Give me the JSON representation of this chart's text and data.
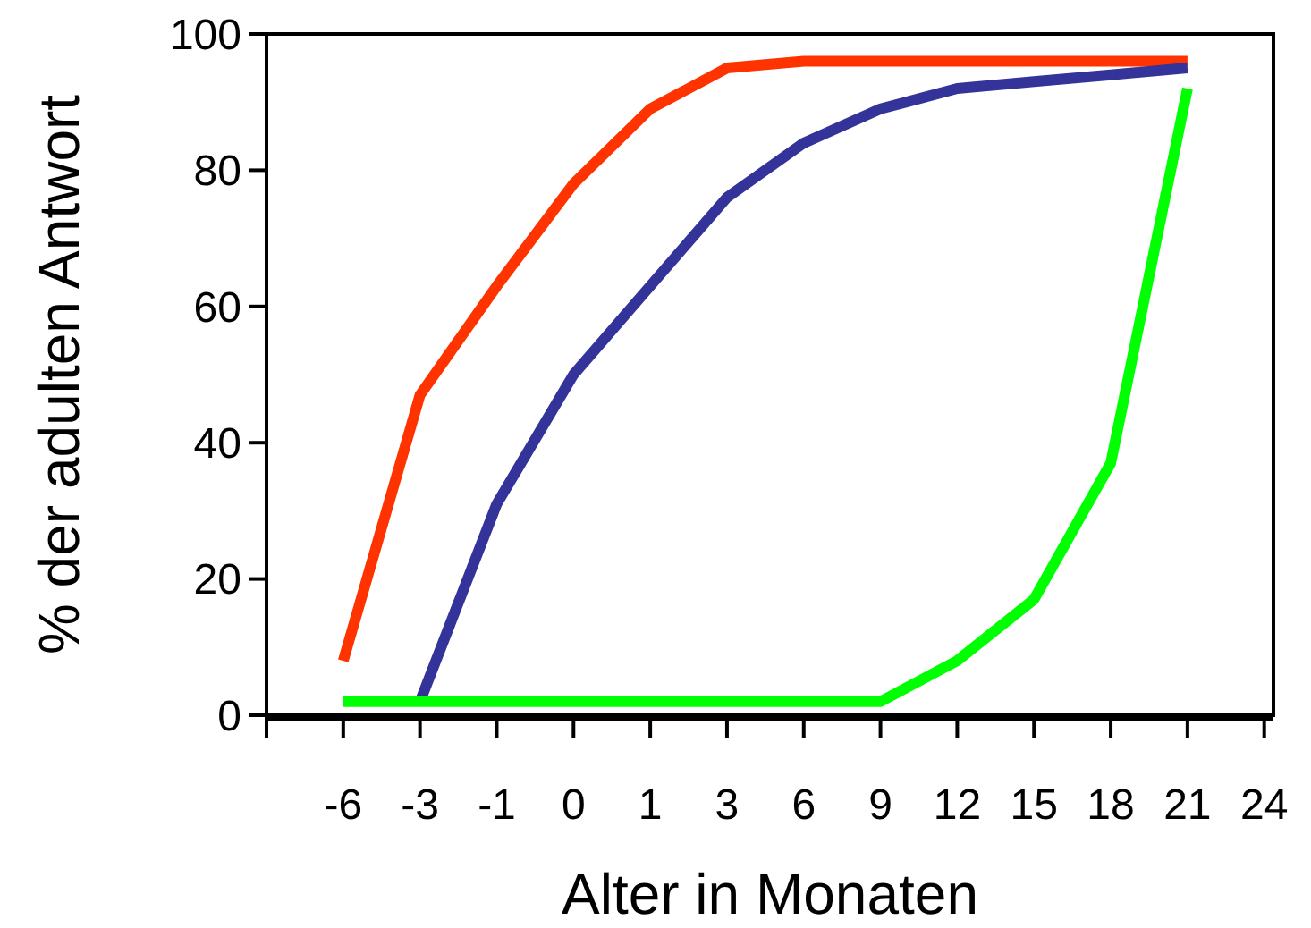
{
  "chart_data": {
    "type": "line",
    "xlabel": "Alter in Monaten",
    "ylabel": "% der adulten Antwort",
    "categories": [
      "-6",
      "-3",
      "-1",
      "0",
      "1",
      "3",
      "6",
      "9",
      "12",
      "15",
      "18",
      "21",
      "24"
    ],
    "ylim": [
      0,
      100
    ],
    "yticks": [
      0,
      20,
      40,
      60,
      80,
      100
    ],
    "grid": false,
    "legend": false,
    "marker": "none",
    "line_style": "solid",
    "series": [
      {
        "color": "#ff3300",
        "values": [
          8,
          47,
          63,
          78,
          89,
          95,
          96,
          96,
          96,
          96,
          96,
          96,
          null
        ]
      },
      {
        "color": "#333399",
        "values": [
          null,
          2,
          31,
          50,
          63,
          76,
          84,
          89,
          92,
          93,
          94,
          95,
          null
        ]
      },
      {
        "color": "#00ff00",
        "values": [
          2,
          2,
          2,
          2,
          2,
          2,
          2,
          2,
          8,
          17,
          37,
          92,
          null
        ]
      }
    ]
  }
}
